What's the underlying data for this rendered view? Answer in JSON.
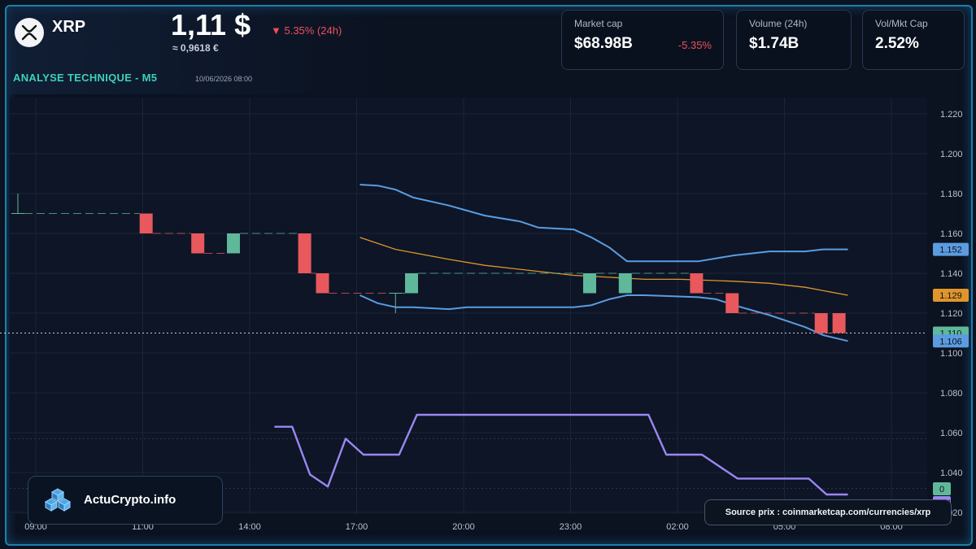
{
  "header": {
    "coin_symbol": "XRP",
    "price_usd": "1,11 $",
    "price_eur": "≈ 0,9618 €",
    "change_24h": "▼ 5.35% (24h)",
    "analysis_title": "ANALYSE TECHNIQUE - M5",
    "analysis_timestamp": "10/06/2026 08:00"
  },
  "stats": [
    {
      "label": "Market cap",
      "value": "$68.98B",
      "change": "-5.35%"
    },
    {
      "label": "Volume (24h)",
      "value": "$1.74B",
      "change": ""
    },
    {
      "label": "Vol/Mkt Cap",
      "value": "2.52%",
      "change": ""
    }
  ],
  "brand": {
    "name": "ActuCrypto.info"
  },
  "source_note": "Source prix : coinmarketcap.com/currencies/xrp",
  "colors": {
    "up": "#5fb89a",
    "down": "#e8585c",
    "bollinger": "#5b9ce0",
    "ma": "#e0952a",
    "oscillator": "#9b87f2",
    "accent": "#3fd0b8",
    "frame": "#1d7fae"
  },
  "chart_data": {
    "type": "candlestick",
    "x_ticks": [
      "09:00",
      "11:00",
      "14:00",
      "17:00",
      "20:00",
      "23:00",
      "02:00",
      "05:00",
      "08:00"
    ],
    "y_ticks": [
      "1.220",
      "1.200",
      "1.180",
      "1.160",
      "1.140",
      "1.120",
      "1.100",
      "1.080",
      "1.060",
      "1.040",
      "1.020"
    ],
    "ylim": [
      1.017,
      1.228
    ],
    "price_labels": [
      {
        "text": "1.152",
        "value": 1.152,
        "color": "#5b9ce0"
      },
      {
        "text": "1.129",
        "value": 1.129,
        "color": "#e0952a"
      },
      {
        "text": "1.110",
        "value": 1.11,
        "color": "#5fb89a"
      },
      {
        "text": "1.106",
        "value": 1.106,
        "color": "#5b9ce0"
      }
    ],
    "oscillator_labels": [
      {
        "text": "0",
        "color": "#5fb89a"
      },
      {
        "text": "-2.41",
        "color": "#9b87f2"
      }
    ],
    "candles": [
      {
        "t": 0.0,
        "o": 1.17,
        "c": 1.17,
        "h": 1.18,
        "l": 1.17
      },
      {
        "t": 7.2,
        "o": 1.17,
        "c": 1.16,
        "h": 1.17,
        "l": 1.16
      },
      {
        "t": 10.1,
        "o": 1.16,
        "c": 1.15,
        "h": 1.16,
        "l": 1.15
      },
      {
        "t": 12.1,
        "o": 1.15,
        "c": 1.16,
        "h": 1.16,
        "l": 1.15
      },
      {
        "t": 16.1,
        "o": 1.16,
        "c": 1.14,
        "h": 1.16,
        "l": 1.14
      },
      {
        "t": 17.1,
        "o": 1.14,
        "c": 1.13,
        "h": 1.14,
        "l": 1.13
      },
      {
        "t": 21.2,
        "o": 1.13,
        "c": 1.13,
        "h": 1.13,
        "l": 1.12
      },
      {
        "t": 22.1,
        "o": 1.13,
        "c": 1.14,
        "h": 1.14,
        "l": 1.13
      },
      {
        "t": 32.1,
        "o": 1.13,
        "c": 1.14,
        "h": 1.14,
        "l": 1.13
      },
      {
        "t": 34.1,
        "o": 1.13,
        "c": 1.14,
        "h": 1.14,
        "l": 1.13
      },
      {
        "t": 38.1,
        "o": 1.14,
        "c": 1.13,
        "h": 1.14,
        "l": 1.13
      },
      {
        "t": 40.1,
        "o": 1.13,
        "c": 1.12,
        "h": 1.13,
        "l": 1.12
      },
      {
        "t": 45.1,
        "o": 1.12,
        "c": 1.11,
        "h": 1.12,
        "l": 1.11
      },
      {
        "t": 46.1,
        "o": 1.12,
        "c": 1.11,
        "h": 1.12,
        "l": 1.11
      }
    ],
    "bollinger_upper": [
      [
        19.2,
        1.1845
      ],
      [
        20.2,
        1.184
      ],
      [
        21.2,
        1.182
      ],
      [
        22.2,
        1.178
      ],
      [
        24.2,
        1.174
      ],
      [
        26.2,
        1.169
      ],
      [
        28.2,
        1.166
      ],
      [
        29.2,
        1.163
      ],
      [
        31.2,
        1.162
      ],
      [
        32.2,
        1.158
      ],
      [
        33.2,
        1.153
      ],
      [
        34.2,
        1.146
      ],
      [
        35.2,
        1.146
      ],
      [
        38.2,
        1.146
      ],
      [
        40.2,
        1.149
      ],
      [
        42.2,
        1.151
      ],
      [
        44.2,
        1.151
      ],
      [
        45.2,
        1.152
      ],
      [
        46.6,
        1.152
      ]
    ],
    "bollinger_lower": [
      [
        19.2,
        1.129
      ],
      [
        20.2,
        1.125
      ],
      [
        21.2,
        1.123
      ],
      [
        22.2,
        1.123
      ],
      [
        24.2,
        1.122
      ],
      [
        25.2,
        1.123
      ],
      [
        28.2,
        1.123
      ],
      [
        31.2,
        1.123
      ],
      [
        32.2,
        1.124
      ],
      [
        33.2,
        1.127
      ],
      [
        34.2,
        1.129
      ],
      [
        35.2,
        1.129
      ],
      [
        38.2,
        1.128
      ],
      [
        39.2,
        1.127
      ],
      [
        40.2,
        1.124
      ],
      [
        42.2,
        1.119
      ],
      [
        44.2,
        1.113
      ],
      [
        45.2,
        1.109
      ],
      [
        46.6,
        1.106
      ]
    ],
    "moving_average": [
      [
        19.2,
        1.158
      ],
      [
        20.2,
        1.155
      ],
      [
        21.2,
        1.152
      ],
      [
        24.2,
        1.147
      ],
      [
        26.2,
        1.144
      ],
      [
        29.2,
        1.141
      ],
      [
        31.2,
        1.139
      ],
      [
        33.2,
        1.138
      ],
      [
        35.2,
        1.137
      ],
      [
        37.2,
        1.137
      ],
      [
        40.2,
        1.136
      ],
      [
        42.2,
        1.135
      ],
      [
        44.2,
        1.133
      ],
      [
        46.6,
        1.129
      ]
    ],
    "oscillator": [
      [
        14.4,
        1.063
      ],
      [
        15.4,
        1.063
      ],
      [
        16.4,
        1.039
      ],
      [
        17.4,
        1.033
      ],
      [
        18.4,
        1.057
      ],
      [
        19.4,
        1.049
      ],
      [
        21.4,
        1.049
      ],
      [
        22.4,
        1.069
      ],
      [
        35.4,
        1.069
      ],
      [
        36.4,
        1.049
      ],
      [
        38.4,
        1.049
      ],
      [
        40.4,
        1.037
      ],
      [
        44.4,
        1.037
      ],
      [
        45.4,
        1.029
      ],
      [
        46.6,
        1.029
      ]
    ]
  }
}
